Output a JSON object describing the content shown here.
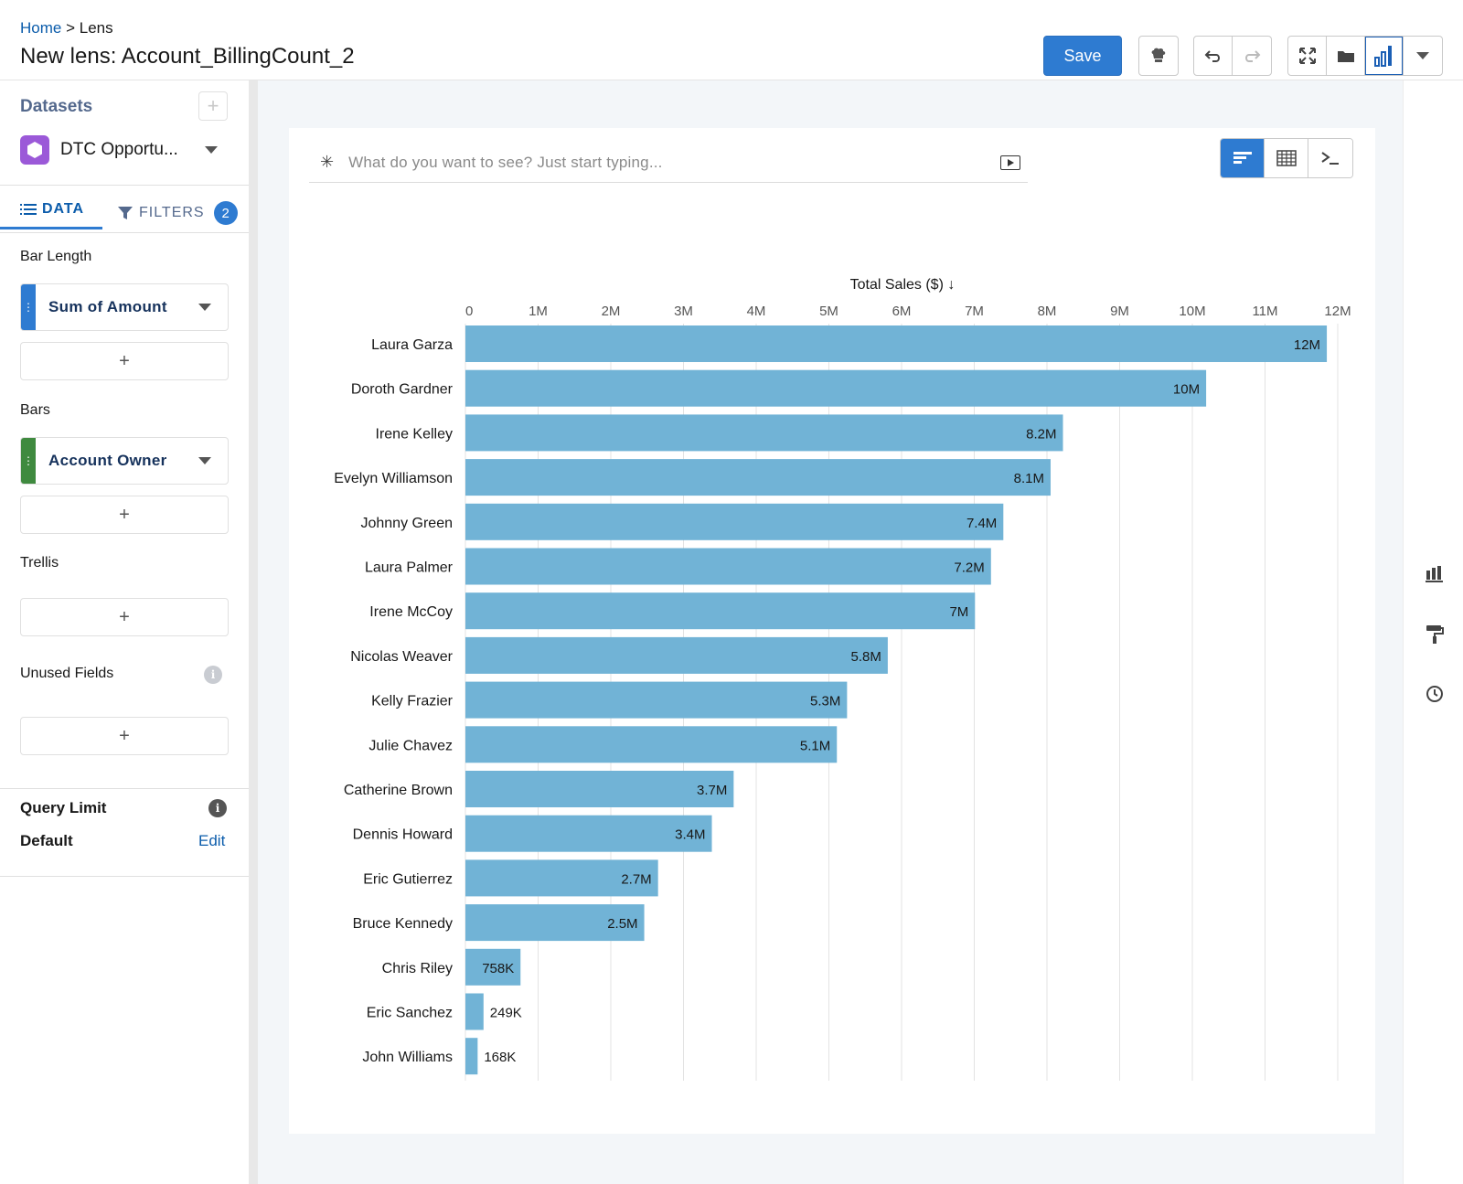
{
  "header": {
    "breadcrumb_home": "Home",
    "breadcrumb_sep": ">",
    "breadcrumb_current": "Lens",
    "title": "New lens: Account_BillingCount_2",
    "save_label": "Save"
  },
  "sidebar": {
    "datasets_title": "Datasets",
    "dataset_name": "DTC Opportu...",
    "tabs": {
      "data": "DATA",
      "filters": "FILTERS",
      "filters_count": "2"
    },
    "bar_length_label": "Bar Length",
    "bar_length_field": "Sum of Amount",
    "bars_label": "Bars",
    "bars_field": "Account Owner",
    "trellis_label": "Trellis",
    "unused_label": "Unused Fields",
    "add_symbol": "+",
    "query_limit_label": "Query Limit",
    "query_default_label": "Default",
    "query_edit_label": "Edit"
  },
  "query": {
    "placeholder": "What do you want to see? Just start typing..."
  },
  "colors": {
    "bar": "#71b3d6",
    "accent": "#2e7bd1",
    "dataset_icon": "#9b59d8",
    "measure_handle": "#2e7bd1",
    "dimension_handle": "#3f8a3f"
  },
  "chart_data": {
    "type": "bar",
    "orientation": "horizontal",
    "xlabel": "Total Sales ($) ↓",
    "xlim": [
      0,
      12000000
    ],
    "tick_labels": [
      "0",
      "1M",
      "2M",
      "3M",
      "4M",
      "5M",
      "6M",
      "7M",
      "8M",
      "9M",
      "10M",
      "11M",
      "12M"
    ],
    "tick_values": [
      0,
      1000000,
      2000000,
      3000000,
      4000000,
      5000000,
      6000000,
      7000000,
      8000000,
      9000000,
      10000000,
      11000000,
      12000000
    ],
    "categories": [
      "Laura Garza",
      "Doroth Gardner",
      "Irene Kelley",
      "Evelyn Williamson",
      "Johnny Green",
      "Laura Palmer",
      "Irene McCoy",
      "Nicolas Weaver",
      "Kelly Frazier",
      "Julie Chavez",
      "Catherine Brown",
      "Dennis Howard",
      "Eric Gutierrez",
      "Bruce Kennedy",
      "Chris Riley",
      "Eric Sanchez",
      "John Williams"
    ],
    "values": [
      11850000,
      10190000,
      8220000,
      8050000,
      7400000,
      7230000,
      7010000,
      5810000,
      5250000,
      5110000,
      3690000,
      3390000,
      2650000,
      2460000,
      758000,
      249000,
      168000
    ],
    "value_labels": [
      "12M",
      "10M",
      "8.2M",
      "8.1M",
      "7.4M",
      "7.2M",
      "7M",
      "5.8M",
      "5.3M",
      "5.1M",
      "3.7M",
      "3.4M",
      "2.7M",
      "2.5M",
      "758K",
      "249K",
      "168K"
    ],
    "grid": true,
    "legend": "none"
  }
}
